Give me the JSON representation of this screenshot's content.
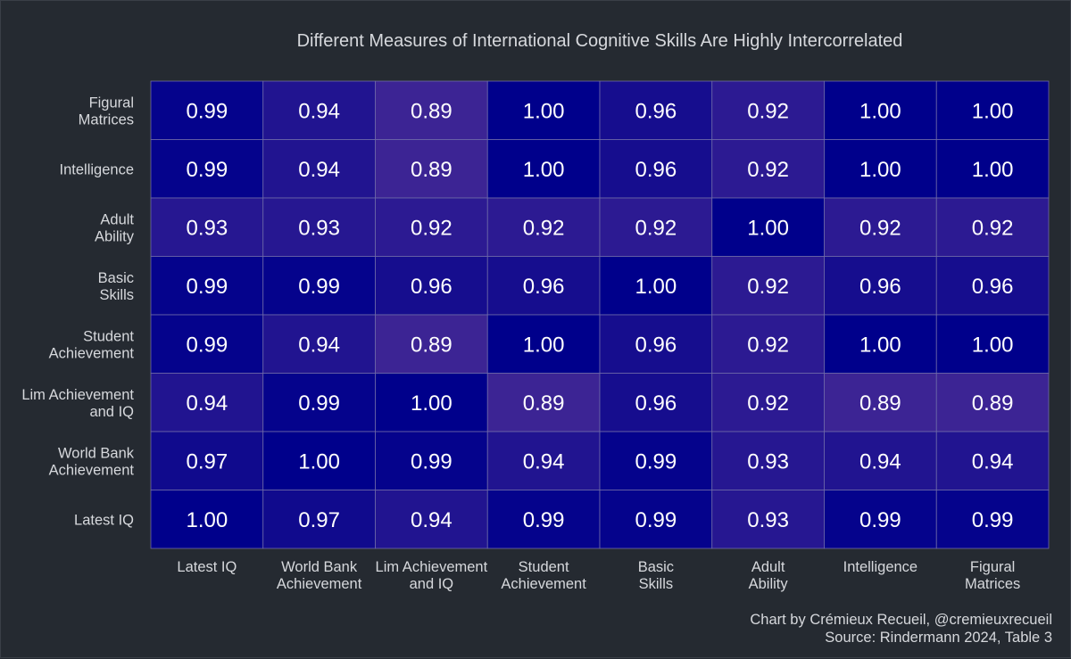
{
  "chart_data": {
    "type": "heatmap",
    "title": "Different Measures of International Cognitive Skills Are Highly Intercorrelated",
    "x_categories": [
      [
        "Latest IQ"
      ],
      [
        "World Bank",
        "Achievement"
      ],
      [
        "Lim Achievement",
        "and IQ"
      ],
      [
        "Student",
        "Achievement"
      ],
      [
        "Basic",
        "Skills"
      ],
      [
        "Adult",
        "Ability"
      ],
      [
        "Intelligence"
      ],
      [
        "Figural",
        "Matrices"
      ]
    ],
    "y_categories": [
      [
        "Figural",
        "Matrices"
      ],
      [
        "Intelligence"
      ],
      [
        "Adult",
        "Ability"
      ],
      [
        "Basic",
        "Skills"
      ],
      [
        "Student",
        "Achievement"
      ],
      [
        "Lim Achievement",
        "and IQ"
      ],
      [
        "World Bank",
        "Achievement"
      ],
      [
        "Latest IQ"
      ]
    ],
    "values": [
      [
        "0.99",
        "0.94",
        "0.89",
        "1.00",
        "0.96",
        "0.92",
        "1.00",
        "1.00"
      ],
      [
        "0.99",
        "0.94",
        "0.89",
        "1.00",
        "0.96",
        "0.92",
        "1.00",
        "1.00"
      ],
      [
        "0.93",
        "0.93",
        "0.92",
        "0.92",
        "0.92",
        "1.00",
        "0.92",
        "0.92"
      ],
      [
        "0.99",
        "0.99",
        "0.96",
        "0.96",
        "1.00",
        "0.92",
        "0.96",
        "0.96"
      ],
      [
        "0.99",
        "0.94",
        "0.89",
        "1.00",
        "0.96",
        "0.92",
        "1.00",
        "1.00"
      ],
      [
        "0.94",
        "0.99",
        "1.00",
        "0.89",
        "0.96",
        "0.92",
        "0.89",
        "0.89"
      ],
      [
        "0.97",
        "1.00",
        "0.99",
        "0.94",
        "0.99",
        "0.93",
        "0.94",
        "0.94"
      ],
      [
        "1.00",
        "0.97",
        "0.94",
        "0.99",
        "0.99",
        "0.93",
        "0.99",
        "0.99"
      ]
    ],
    "color_scale": {
      "low_value": 0.89,
      "high_value": 1.0,
      "low_color": "#3c2494",
      "high_color": "#00008b"
    },
    "legend": "none",
    "grid": true
  },
  "caption": {
    "line1": "Chart by Crémieux Recueil, @cremieuxrecueil",
    "line2": "Source: Rindermann 2024, Table 3"
  },
  "colors": {
    "background": "#252a31",
    "text": "#d6d8dc",
    "cell_border": "#6e6aa8",
    "cell_text": "#ffffff"
  }
}
